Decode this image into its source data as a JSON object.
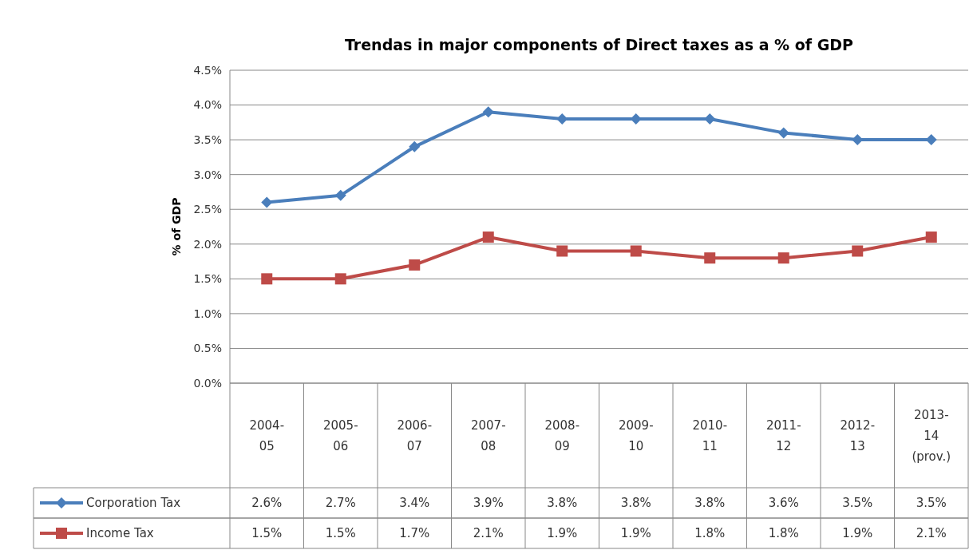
{
  "chart_data": {
    "type": "line",
    "title": "Trendas in major components of Direct taxes as a % of GDP",
    "ylabel": "% of GDP",
    "categories": [
      "2004-05",
      "2005-06",
      "2006-07",
      "2007-08",
      "2008-09",
      "2009-10",
      "2010-11",
      "2011-12",
      "2012-13",
      "2013-14 (prov.)"
    ],
    "series": [
      {
        "name": "Corporation Tax",
        "color": "#4a7ebb",
        "marker": "diamond",
        "values": [
          2.6,
          2.7,
          3.4,
          3.9,
          3.8,
          3.8,
          3.8,
          3.6,
          3.5,
          3.5
        ],
        "value_labels": [
          "2.6%",
          "2.7%",
          "3.4%",
          "3.9%",
          "3.8%",
          "3.8%",
          "3.8%",
          "3.6%",
          "3.5%",
          "3.5%"
        ]
      },
      {
        "name": "Income Tax",
        "color": "#be4b48",
        "marker": "square",
        "values": [
          1.5,
          1.5,
          1.7,
          2.1,
          1.9,
          1.9,
          1.8,
          1.8,
          1.9,
          2.1
        ],
        "value_labels": [
          "1.5%",
          "1.5%",
          "1.7%",
          "2.1%",
          "1.9%",
          "1.9%",
          "1.8%",
          "1.8%",
          "1.9%",
          "2.1%"
        ]
      }
    ],
    "ylim": [
      0,
      4.5
    ],
    "yticks": [
      {
        "value": 0,
        "label": "0.0%"
      },
      {
        "value": 0.5,
        "label": "0.5%"
      },
      {
        "value": 1,
        "label": "1.0%"
      },
      {
        "value": 1.5,
        "label": "1.5%"
      },
      {
        "value": 2,
        "label": "2.0%"
      },
      {
        "value": 2.5,
        "label": "2.5%"
      },
      {
        "value": 3,
        "label": "3.0%"
      },
      {
        "value": 3.5,
        "label": "3.5%"
      },
      {
        "value": 4,
        "label": "4.0%"
      },
      {
        "value": 4.5,
        "label": "4.5%"
      }
    ],
    "grid": "y",
    "legend": "bottom left"
  }
}
